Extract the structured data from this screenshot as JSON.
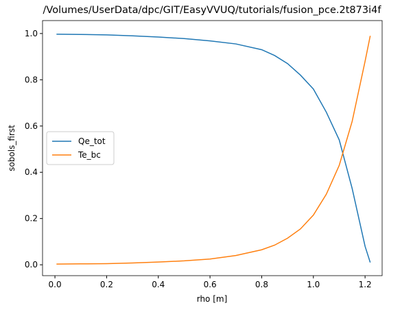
{
  "chart_data": {
    "type": "line",
    "title": "/Volumes/UserData/dpc/GIT/EasyVVUQ/tutorials/fusion_pce.2t873i4f",
    "x_label": "rho [m]",
    "y_label": "sobols_first",
    "x": [
      0.006,
      0.1,
      0.2,
      0.3,
      0.4,
      0.5,
      0.6,
      0.7,
      0.8,
      0.85,
      0.9,
      0.95,
      1.0,
      1.05,
      1.1,
      1.15,
      1.2,
      1.22
    ],
    "series": [
      {
        "name": "Qe_tot",
        "color": "#1f77b4",
        "values": [
          0.997,
          0.996,
          0.994,
          0.99,
          0.985,
          0.978,
          0.968,
          0.955,
          0.93,
          0.905,
          0.87,
          0.82,
          0.76,
          0.66,
          0.54,
          0.33,
          0.08,
          0.01
        ]
      },
      {
        "name": "Te_bc",
        "color": "#ff7f0e",
        "values": [
          0.003,
          0.004,
          0.005,
          0.008,
          0.012,
          0.017,
          0.025,
          0.04,
          0.065,
          0.085,
          0.115,
          0.155,
          0.215,
          0.305,
          0.43,
          0.62,
          0.88,
          0.99
        ]
      }
    ],
    "xlim": [
      -0.048,
      1.266
    ],
    "ylim": [
      -0.047,
      1.056
    ],
    "xticks": [
      {
        "value": 0,
        "label": "0.0"
      },
      0.2,
      0.4,
      0.6,
      0.8,
      {
        "value": 1,
        "label": "1.0"
      },
      1.2
    ],
    "yticks": [
      {
        "value": 0,
        "label": "0.0"
      },
      0.2,
      0.4,
      0.6,
      0.8,
      {
        "value": 1,
        "label": "1.0"
      }
    ],
    "legend": "center left"
  }
}
